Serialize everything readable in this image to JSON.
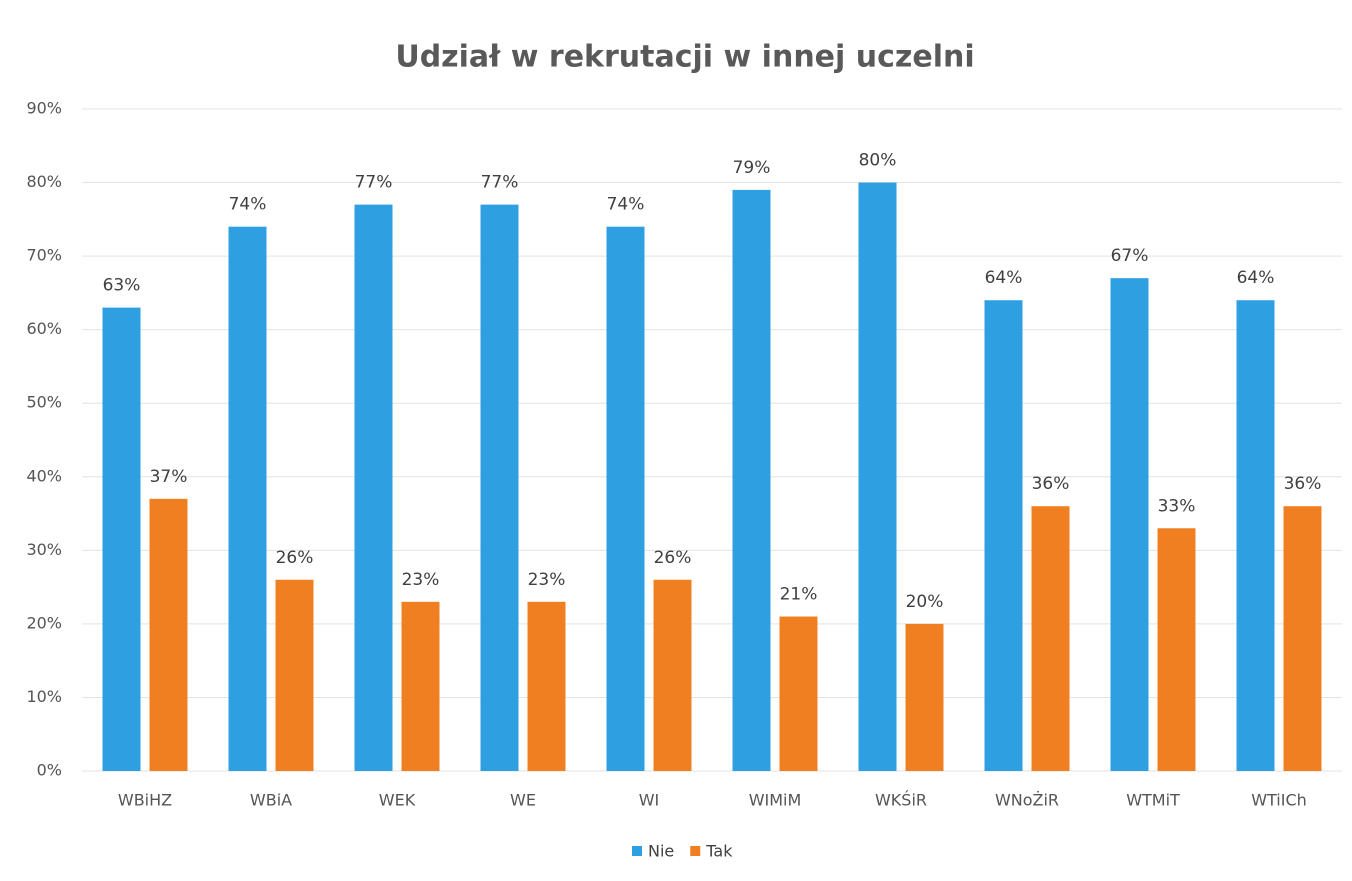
{
  "chart_data": {
    "type": "bar",
    "title": "Udział w rekrutacji w innej uczelni",
    "categories": [
      "WBiHZ",
      "WBiA",
      "WEK",
      "WE",
      "WI",
      "WIMiM",
      "WKŚiR",
      "WNoŻiR",
      "WTMiT",
      "WTiICh"
    ],
    "series": [
      {
        "name": "Nie",
        "color": "#2e9fe0",
        "values": [
          63,
          74,
          77,
          77,
          74,
          79,
          80,
          64,
          67,
          64
        ],
        "value_labels": [
          "63%",
          "74%",
          "77%",
          "77%",
          "74%",
          "79%",
          "80%",
          "64%",
          "67%",
          "64%"
        ]
      },
      {
        "name": "Tak",
        "color": "#f07f22",
        "values": [
          37,
          26,
          23,
          23,
          26,
          21,
          20,
          36,
          33,
          36
        ],
        "value_labels": [
          "37%",
          "26%",
          "23%",
          "23%",
          "26%",
          "21%",
          "20%",
          "36%",
          "33%",
          "36%"
        ]
      }
    ],
    "ylim": [
      0,
      90
    ],
    "yticks": [
      {
        "value": 0,
        "label": "0%"
      },
      {
        "value": 10,
        "label": "10%"
      },
      {
        "value": 20,
        "label": "20%"
      },
      {
        "value": 30,
        "label": "30%"
      },
      {
        "value": 40,
        "label": "40%"
      },
      {
        "value": 50,
        "label": "50%"
      },
      {
        "value": 60,
        "label": "60%"
      },
      {
        "value": 70,
        "label": "70%"
      },
      {
        "value": 80,
        "label": "80%"
      },
      {
        "value": 90,
        "label": "90%"
      }
    ],
    "grid": true,
    "legend": "bottom"
  }
}
